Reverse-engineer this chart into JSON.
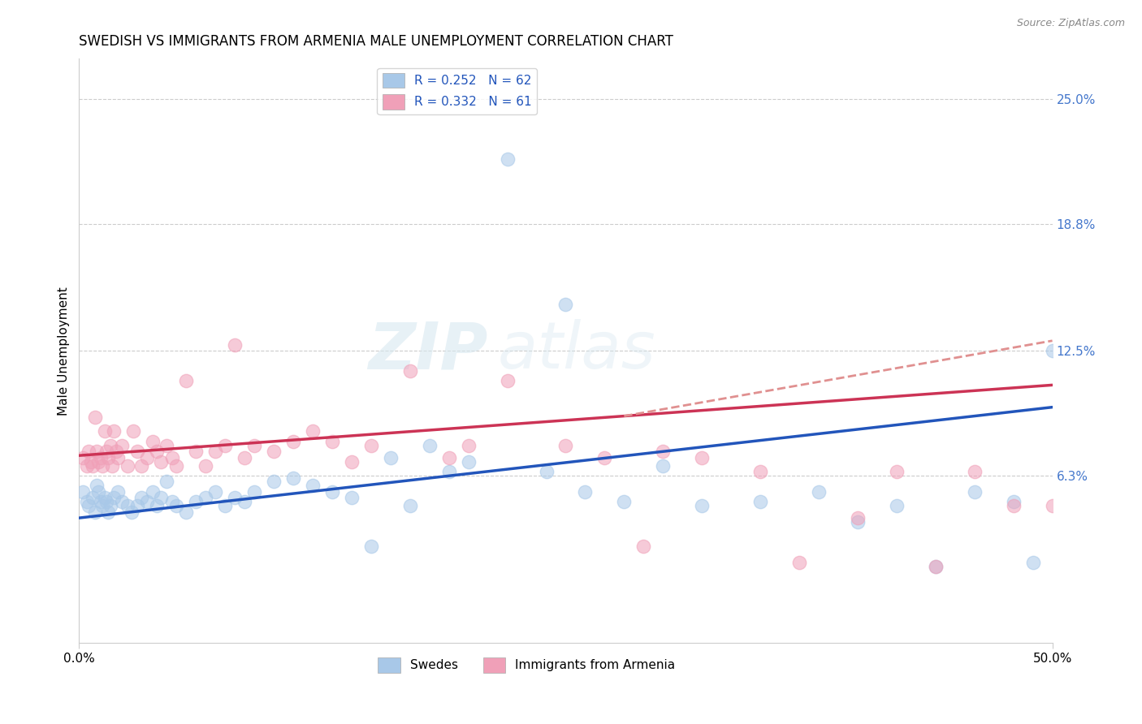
{
  "title": "SWEDISH VS IMMIGRANTS FROM ARMENIA MALE UNEMPLOYMENT CORRELATION CHART",
  "source": "Source: ZipAtlas.com",
  "ylabel": "Male Unemployment",
  "xlim": [
    0.0,
    0.5
  ],
  "ylim": [
    -0.02,
    0.27
  ],
  "xtick_labels": [
    "0.0%",
    "50.0%"
  ],
  "xtick_positions": [
    0.0,
    0.5
  ],
  "ytick_labels": [
    "25.0%",
    "18.8%",
    "12.5%",
    "6.3%"
  ],
  "ytick_positions": [
    0.25,
    0.188,
    0.125,
    0.063
  ],
  "watermark_zip": "ZIP",
  "watermark_atlas": "atlas",
  "swedes_color": "#a8c8e8",
  "armenia_color": "#f0a0b8",
  "trend_swedes_color": "#2255bb",
  "trend_armenia_color": "#cc3355",
  "trend_armenia_dashed_color": "#e09090",
  "background_color": "#ffffff",
  "grid_color": "#cccccc",
  "title_fontsize": 12,
  "axis_label_fontsize": 11,
  "tick_fontsize": 11,
  "right_tick_color": "#4477cc",
  "swedes_x": [
    0.002,
    0.004,
    0.005,
    0.007,
    0.008,
    0.009,
    0.01,
    0.011,
    0.012,
    0.013,
    0.014,
    0.015,
    0.016,
    0.018,
    0.02,
    0.022,
    0.025,
    0.027,
    0.03,
    0.032,
    0.035,
    0.038,
    0.04,
    0.042,
    0.045,
    0.048,
    0.05,
    0.055,
    0.06,
    0.065,
    0.07,
    0.075,
    0.08,
    0.085,
    0.09,
    0.1,
    0.11,
    0.12,
    0.13,
    0.14,
    0.15,
    0.16,
    0.17,
    0.18,
    0.19,
    0.2,
    0.22,
    0.24,
    0.25,
    0.26,
    0.28,
    0.3,
    0.32,
    0.35,
    0.38,
    0.4,
    0.42,
    0.44,
    0.46,
    0.48,
    0.49,
    0.5
  ],
  "swedes_y": [
    0.055,
    0.05,
    0.048,
    0.052,
    0.045,
    0.058,
    0.055,
    0.05,
    0.048,
    0.052,
    0.05,
    0.045,
    0.048,
    0.052,
    0.055,
    0.05,
    0.048,
    0.045,
    0.048,
    0.052,
    0.05,
    0.055,
    0.048,
    0.052,
    0.06,
    0.05,
    0.048,
    0.045,
    0.05,
    0.052,
    0.055,
    0.048,
    0.052,
    0.05,
    0.055,
    0.06,
    0.062,
    0.058,
    0.055,
    0.052,
    0.028,
    0.072,
    0.048,
    0.078,
    0.065,
    0.07,
    0.22,
    0.065,
    0.148,
    0.055,
    0.05,
    0.068,
    0.048,
    0.05,
    0.055,
    0.04,
    0.048,
    0.018,
    0.055,
    0.05,
    0.02,
    0.125
  ],
  "armenia_x": [
    0.002,
    0.004,
    0.005,
    0.006,
    0.007,
    0.008,
    0.009,
    0.01,
    0.011,
    0.012,
    0.013,
    0.014,
    0.015,
    0.016,
    0.017,
    0.018,
    0.019,
    0.02,
    0.022,
    0.025,
    0.028,
    0.03,
    0.032,
    0.035,
    0.038,
    0.04,
    0.042,
    0.045,
    0.048,
    0.05,
    0.055,
    0.06,
    0.065,
    0.07,
    0.075,
    0.08,
    0.085,
    0.09,
    0.1,
    0.11,
    0.12,
    0.13,
    0.14,
    0.15,
    0.17,
    0.19,
    0.2,
    0.22,
    0.25,
    0.27,
    0.29,
    0.3,
    0.32,
    0.35,
    0.37,
    0.4,
    0.42,
    0.44,
    0.46,
    0.48,
    0.5
  ],
  "armenia_y": [
    0.072,
    0.068,
    0.075,
    0.07,
    0.068,
    0.092,
    0.075,
    0.07,
    0.072,
    0.068,
    0.085,
    0.075,
    0.072,
    0.078,
    0.068,
    0.085,
    0.075,
    0.072,
    0.078,
    0.068,
    0.085,
    0.075,
    0.068,
    0.072,
    0.08,
    0.075,
    0.07,
    0.078,
    0.072,
    0.068,
    0.11,
    0.075,
    0.068,
    0.075,
    0.078,
    0.128,
    0.072,
    0.078,
    0.075,
    0.08,
    0.085,
    0.08,
    0.07,
    0.078,
    0.115,
    0.072,
    0.078,
    0.11,
    0.078,
    0.072,
    0.028,
    0.075,
    0.072,
    0.065,
    0.02,
    0.042,
    0.065,
    0.018,
    0.065,
    0.048,
    0.048
  ]
}
